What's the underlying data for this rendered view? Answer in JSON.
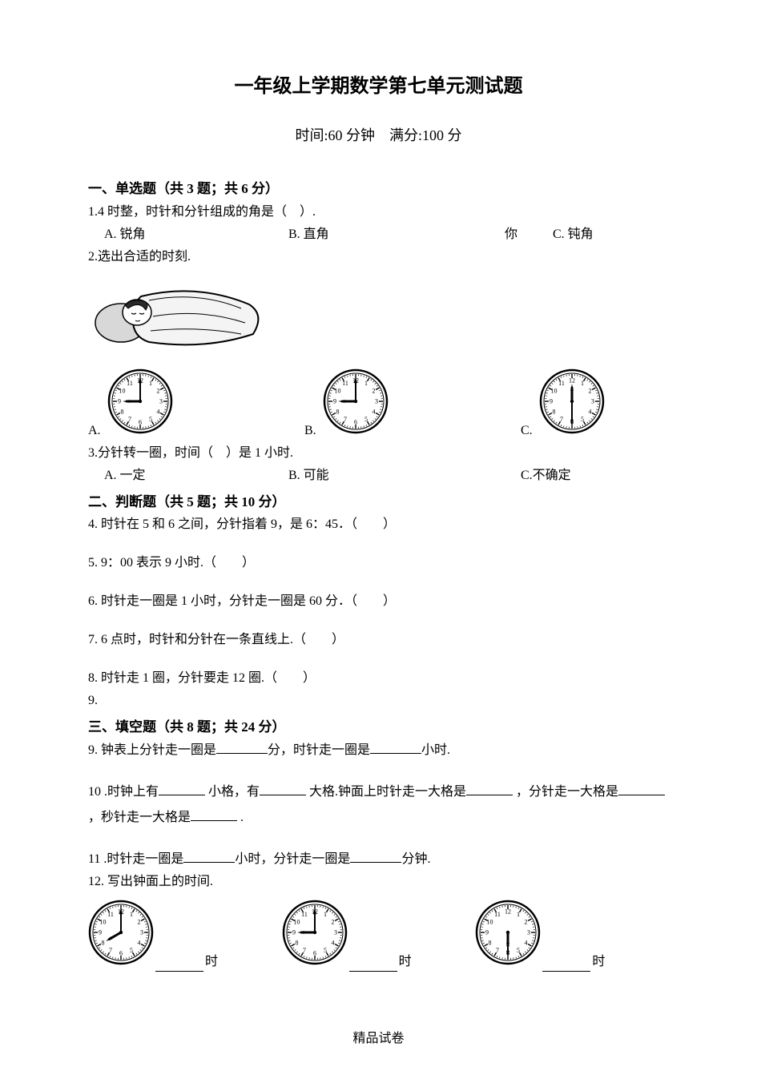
{
  "title": "一年级上学期数学第七单元测试题",
  "subtitle": "时间:60 分钟　满分:100 分",
  "section1": {
    "header": "一、单选题（共 3 题；共 6 分）",
    "q1": {
      "text": "1.4 时整，时针和分针组成的角是（　）.",
      "a": "A. 锐角",
      "b": "B. 直角",
      "extra": "你",
      "c": "C. 钝角"
    },
    "q2": {
      "text": "2.选出合适的时刻.",
      "a": "A.",
      "b": "B.",
      "c": "C.",
      "clocks": {
        "a": {
          "hour_angle": 270,
          "minute_angle": 0
        },
        "b": {
          "hour_angle": 270,
          "minute_angle": 0
        },
        "c": {
          "hour_angle": 0,
          "minute_angle": 180
        }
      }
    },
    "q3": {
      "text": "3.分针转一圈，时间（　）是 1 小时.",
      "a": "A. 一定",
      "b": "B. 可能",
      "c": "C.不确定"
    }
  },
  "section2": {
    "header": "二、判断题（共 5 题；共 10 分）",
    "q4": "4. 时针在 5 和 6 之间，分针指着 9，是 6：45．（　　）",
    "q5": "5. 9：00 表示 9 小时.（　　）",
    "q6": "6. 时针走一圈是 1 小时，分针走一圈是 60 分．（　　）",
    "q7": "7. 6 点时，时针和分针在一条直线上.（　　）",
    "q8": "8. 时针走 1 圈，分针要走 12 圈.（　　）",
    "q9": "9."
  },
  "section3": {
    "header": "三、填空题（共 8 题；共 24 分）",
    "q9": {
      "p1": "9. 钟表上分针走一圈是",
      "p2": "分，时针走一圈是",
      "p3": "小时."
    },
    "q10": {
      "p1": "10 .时钟上有",
      "p2": " 小格，有",
      "p3": " 大格.钟面上时针走一大格是",
      "p4": " ，分针走一大格是",
      "p5": " ，秒针走一大格是",
      "p6": " ."
    },
    "q11": {
      "p1": "11 .时针走一圈是",
      "p2": "小时，分针走一圈是",
      "p3": "分钟."
    },
    "q12": {
      "text": "12. 写出钟面上的时间.",
      "unit": "时",
      "clocks": {
        "a": {
          "hour_angle": 240,
          "minute_angle": 0
        },
        "b": {
          "hour_angle": 270,
          "minute_angle": 0
        },
        "c": {
          "hour_angle": 180,
          "minute_angle": 180
        }
      }
    }
  },
  "footer": "精品试卷",
  "clock_style": {
    "size": 82,
    "face_fill": "#ffffff",
    "stroke": "#000000",
    "outer_stroke_width": 2.5,
    "tick_color": "#000000",
    "hand_color": "#000000",
    "num_font_size": 8
  },
  "sleep_image": {
    "pillow_fill": "#d0d0d0",
    "blanket_fill": "#f2f2f2",
    "face_fill": "#ffffff",
    "hair_fill": "#2a2a2a",
    "stroke": "#000000"
  }
}
